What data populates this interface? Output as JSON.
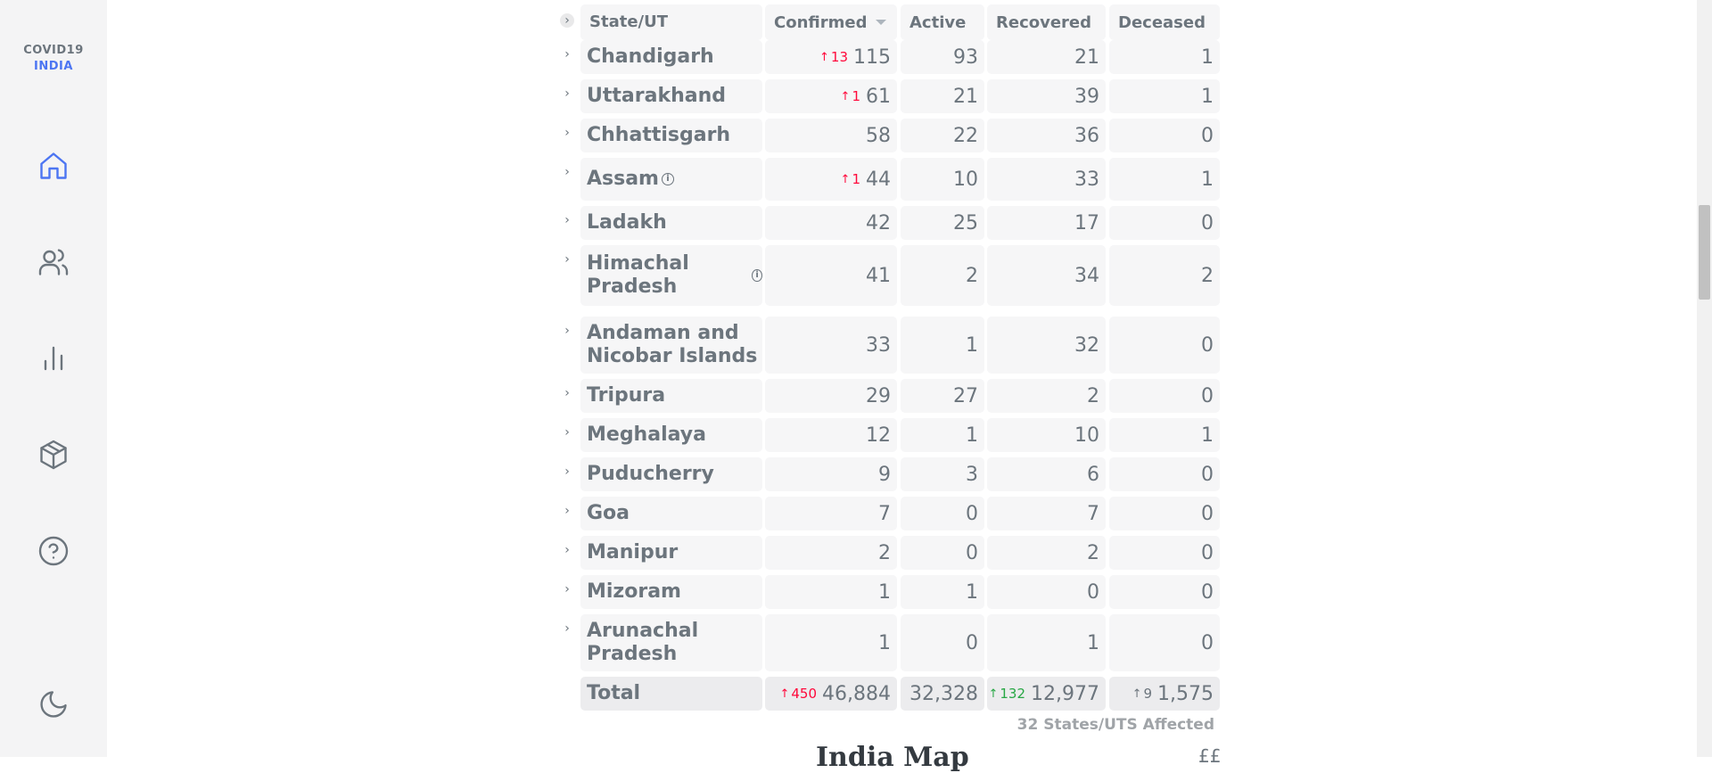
{
  "brand": {
    "line1": "COVID19",
    "line2": "INDIA"
  },
  "nav": [
    {
      "name": "home-icon",
      "active": true
    },
    {
      "name": "users-icon",
      "active": false
    },
    {
      "name": "bar-chart-icon",
      "active": false
    },
    {
      "name": "box-icon",
      "active": false
    },
    {
      "name": "help-icon",
      "active": false
    },
    {
      "name": "moon-icon",
      "active": false
    }
  ],
  "table": {
    "headers": {
      "state": "State/UT",
      "confirmed": "Confirmed",
      "active": "Active",
      "recovered": "Recovered",
      "deceased": "Deceased"
    },
    "rows": [
      {
        "state": "Chandigarh",
        "delta": "13",
        "confirmed": "115",
        "active": "93",
        "recovered": "21",
        "deceased": "1"
      },
      {
        "state": "Uttarakhand",
        "delta": "1",
        "confirmed": "61",
        "active": "21",
        "recovered": "39",
        "deceased": "1"
      },
      {
        "state": "Chhattisgarh",
        "delta": "",
        "confirmed": "58",
        "active": "22",
        "recovered": "36",
        "deceased": "0"
      },
      {
        "state": "Assam",
        "delta": "1",
        "confirmed": "44",
        "active": "10",
        "recovered": "33",
        "deceased": "1"
      },
      {
        "state": "Ladakh",
        "delta": "",
        "confirmed": "42",
        "active": "25",
        "recovered": "17",
        "deceased": "0"
      },
      {
        "state": "Himachal Pradesh",
        "delta": "",
        "confirmed": "41",
        "active": "2",
        "recovered": "34",
        "deceased": "2"
      },
      {
        "state": "Andaman and Nicobar Islands",
        "delta": "",
        "confirmed": "33",
        "active": "1",
        "recovered": "32",
        "deceased": "0"
      },
      {
        "state": "Tripura",
        "delta": "",
        "confirmed": "29",
        "active": "27",
        "recovered": "2",
        "deceased": "0"
      },
      {
        "state": "Meghalaya",
        "delta": "",
        "confirmed": "12",
        "active": "1",
        "recovered": "10",
        "deceased": "1"
      },
      {
        "state": "Puducherry",
        "delta": "",
        "confirmed": "9",
        "active": "3",
        "recovered": "6",
        "deceased": "0"
      },
      {
        "state": "Goa",
        "delta": "",
        "confirmed": "7",
        "active": "0",
        "recovered": "7",
        "deceased": "0"
      },
      {
        "state": "Manipur",
        "delta": "",
        "confirmed": "2",
        "active": "0",
        "recovered": "2",
        "deceased": "0"
      },
      {
        "state": "Mizoram",
        "delta": "",
        "confirmed": "1",
        "active": "1",
        "recovered": "0",
        "deceased": "0"
      },
      {
        "state": "Arunachal Pradesh",
        "delta": "",
        "confirmed": "1",
        "active": "0",
        "recovered": "1",
        "deceased": "0"
      }
    ],
    "total": {
      "label": "Total",
      "confirmed_delta": "450",
      "confirmed": "46,884",
      "active": "32,328",
      "recovered_delta": "132",
      "recovered": "12,977",
      "deceased_delta": "9",
      "deceased": "1,575"
    },
    "affected": "32 States/UTS Affected"
  },
  "next_section": {
    "title": "India Map",
    "right": "££"
  }
}
